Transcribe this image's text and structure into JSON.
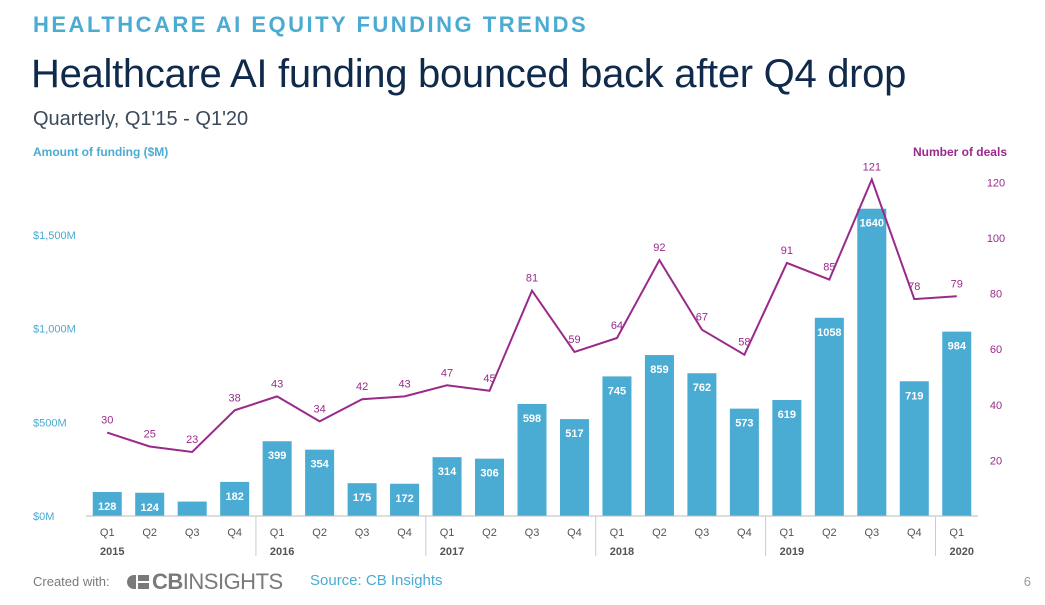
{
  "header": {
    "kicker": "HEALTHCARE AI EQUITY FUNDING TRENDS",
    "title": "Healthcare AI funding bounced back after Q4 drop",
    "subtitle": "Quarterly, Q1'15 - Q1'20"
  },
  "footer": {
    "created_with": "Created with:",
    "logo_cb": "CB",
    "logo_insights": "INSIGHTS",
    "source": "Source: CB Insights",
    "page_number": "6"
  },
  "colors": {
    "bar": "#4aabd3",
    "line": "#9a2a8a",
    "axis_text": "#4aabd3",
    "deals_text": "#9a2a8a",
    "category_text": "#555555"
  },
  "chart_data": {
    "type": "bar",
    "title": "Healthcare AI funding bounced back after Q4 drop",
    "quarters": [
      "Q1",
      "Q2",
      "Q3",
      "Q4",
      "Q1",
      "Q2",
      "Q3",
      "Q4",
      "Q1",
      "Q2",
      "Q3",
      "Q4",
      "Q1",
      "Q2",
      "Q3",
      "Q4",
      "Q1",
      "Q2",
      "Q3",
      "Q4",
      "Q1"
    ],
    "years": [
      {
        "label": "2015",
        "start": 0,
        "end": 3
      },
      {
        "label": "2016",
        "start": 4,
        "end": 7
      },
      {
        "label": "2017",
        "start": 8,
        "end": 11
      },
      {
        "label": "2018",
        "start": 12,
        "end": 15
      },
      {
        "label": "2019",
        "start": 16,
        "end": 19
      },
      {
        "label": "2020",
        "start": 20,
        "end": 20
      }
    ],
    "series": [
      {
        "name": "Amount of funding ($M)",
        "type": "bar",
        "axis": "left",
        "values": [
          128,
          124,
          77,
          182,
          399,
          354,
          175,
          172,
          314,
          306,
          598,
          517,
          745,
          859,
          762,
          573,
          619,
          1058,
          1640,
          719,
          984
        ],
        "labels": [
          "128",
          "124",
          "",
          "182",
          "399",
          "354",
          "175",
          "172",
          "314",
          "306",
          "598",
          "517",
          "745",
          "859",
          "762",
          "573",
          "619",
          "1058",
          "1640",
          "719",
          "984"
        ]
      },
      {
        "name": "Number of deals",
        "type": "line",
        "axis": "right",
        "values": [
          30,
          25,
          23,
          38,
          43,
          34,
          42,
          43,
          47,
          45,
          81,
          59,
          64,
          92,
          67,
          58,
          91,
          85,
          121,
          78,
          79
        ]
      }
    ],
    "ylabel": "Amount of funding ($M)",
    "y2label": "Number of deals",
    "ylim": [
      0,
      1900
    ],
    "y2lim": [
      0,
      128
    ],
    "yticks": [
      0,
      500,
      1000,
      1500
    ],
    "ytick_labels": [
      "$0M",
      "$500M",
      "$1,000M",
      "$1,500M"
    ],
    "y2ticks": [
      20,
      40,
      60,
      80,
      100,
      120
    ],
    "y2tick_labels": [
      "20",
      "40",
      "60",
      "80",
      "100",
      "120"
    ]
  }
}
